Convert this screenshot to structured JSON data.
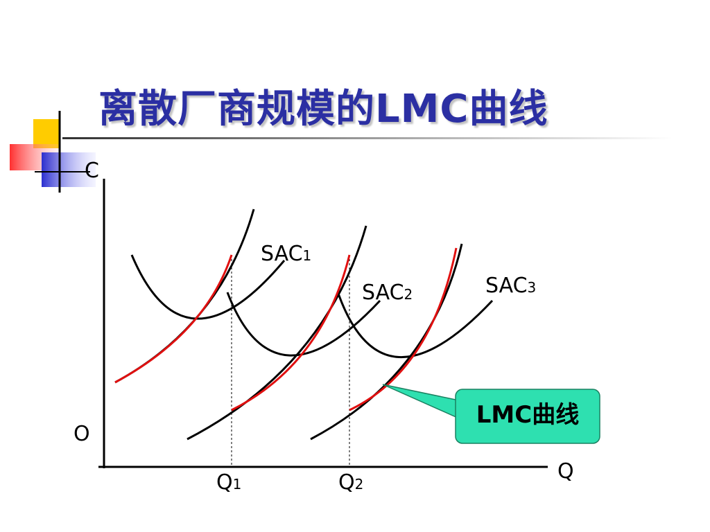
{
  "slide": {
    "title": "离散厂商规模的LMC曲线"
  },
  "axes": {
    "y_label": "C",
    "x_label": "Q",
    "origin_label": "O"
  },
  "curves": {
    "sac1": {
      "label": "SAC",
      "sub": "1"
    },
    "sac2": {
      "label": "SAC",
      "sub": "2"
    },
    "sac3": {
      "label": "SAC",
      "sub": "3"
    }
  },
  "quantities": {
    "q1": {
      "label": "Q",
      "sub": "1"
    },
    "q2": {
      "label": "Q",
      "sub": "2"
    }
  },
  "callout": {
    "text": "LMC曲线"
  },
  "colors": {
    "title": "#2b2fa3",
    "lmc_curve": "#e01010",
    "callout_fill": "#2ee0b0",
    "axis": "#000000"
  }
}
